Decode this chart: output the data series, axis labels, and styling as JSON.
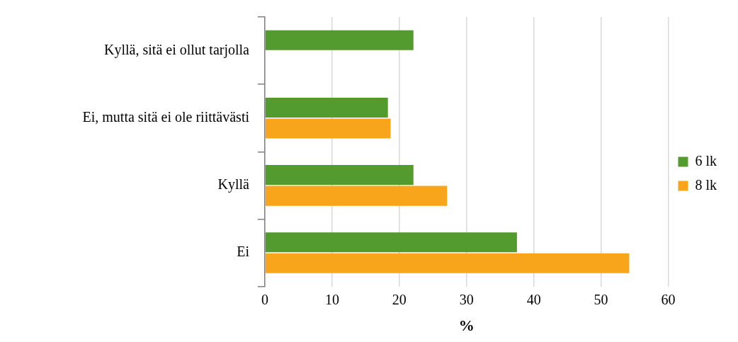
{
  "chart_data": {
    "type": "bar",
    "orientation": "horizontal",
    "xlabel": "%",
    "categories": [
      "Kyllä, sitä ei ollut tarjolla",
      "Ei, mutta sitä ei ole riittävästi",
      "Kyllä",
      "Ei"
    ],
    "series": [
      {
        "name": "6 lk",
        "color": "#539a2f",
        "values": [
          22.1,
          18.3,
          22.1,
          37.5
        ]
      },
      {
        "name": "8 lk",
        "color": "#f8a51b",
        "values": [
          null,
          18.7,
          27.1,
          54.2
        ]
      }
    ],
    "xlim": [
      0,
      60
    ],
    "xticks": [
      0,
      10,
      20,
      30,
      40,
      50,
      60
    ],
    "grid": "x",
    "legend": "right"
  }
}
